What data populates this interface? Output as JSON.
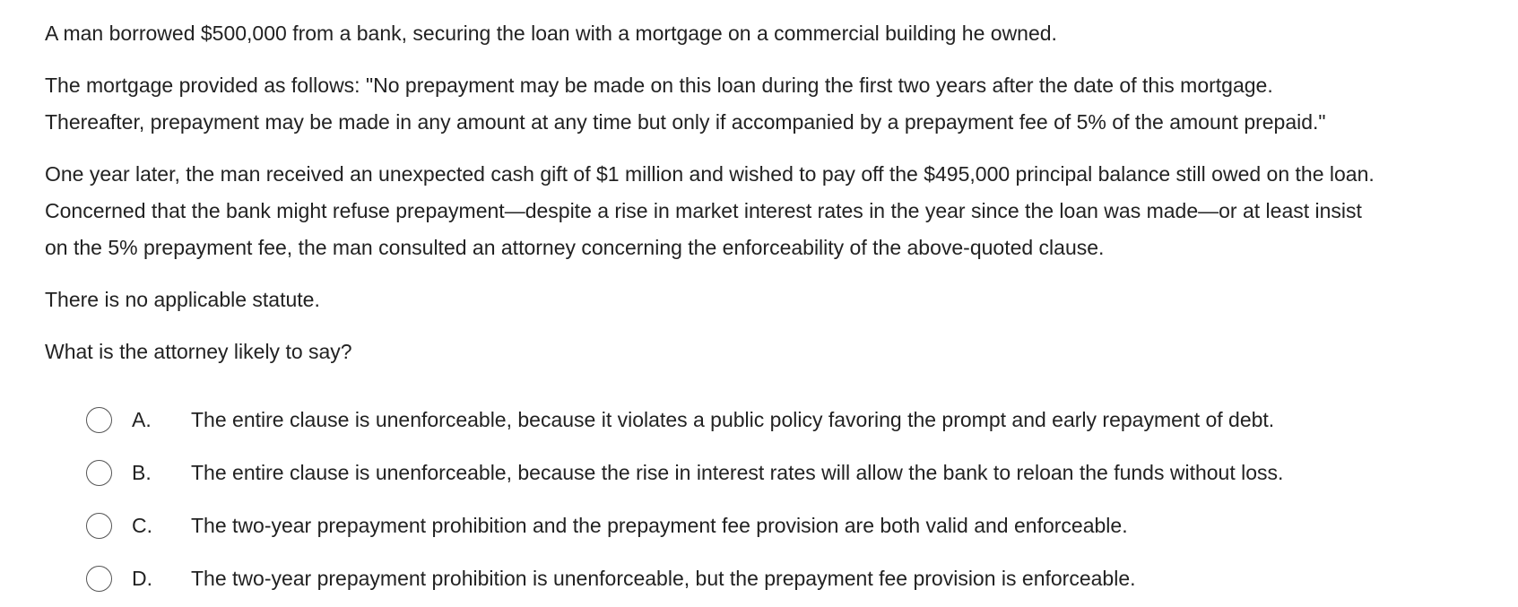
{
  "question": {
    "paragraphs": [
      {
        "lines": [
          "A man borrowed $500,000 from a bank, securing the loan with a mortgage on a commercial building he owned."
        ]
      },
      {
        "lines": [
          "The mortgage provided as follows: \"No prepayment may be made on this loan during the first two years after the date of this mortgage.",
          "Thereafter, prepayment may be made in any amount at any time but only if accompanied by a prepayment fee of 5% of the amount prepaid.\""
        ]
      },
      {
        "lines": [
          "One year later, the man received an unexpected cash gift of $1 million and wished to pay off the $495,000 principal balance still owed on the loan.",
          "Concerned that the bank might refuse prepayment—despite a rise in market interest rates in the year since the loan was made—or at least insist",
          "on the 5% prepayment fee, the man consulted an attorney concerning the enforceability of the above-quoted clause."
        ]
      },
      {
        "lines": [
          "There is no applicable statute."
        ]
      },
      {
        "lines": [
          "What is the attorney likely to say?"
        ]
      }
    ]
  },
  "options": [
    {
      "letter": "A.",
      "text": "The entire clause is unenforceable, because it violates a public policy favoring the prompt and early repayment of debt."
    },
    {
      "letter": "B.",
      "text": "The entire clause is unenforceable, because the rise in interest rates will allow the bank to reloan the funds without loss."
    },
    {
      "letter": "C.",
      "text": "The two-year prepayment prohibition and the prepayment fee provision are both valid and enforceable."
    },
    {
      "letter": "D.",
      "text": "The two-year prepayment prohibition is unenforceable, but the prepayment fee provision is enforceable."
    }
  ]
}
